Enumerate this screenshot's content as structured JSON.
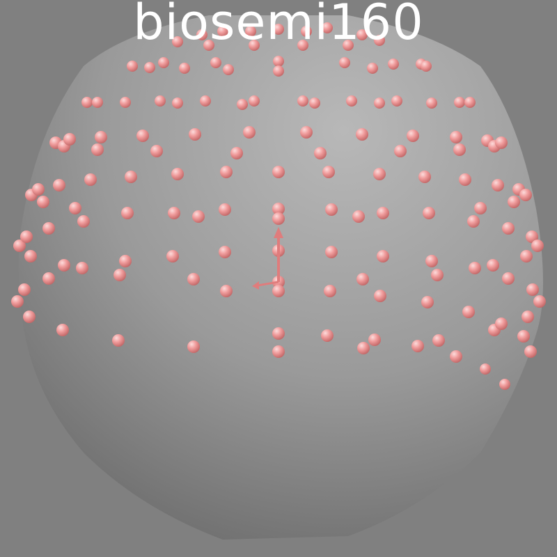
{
  "title": "biosemi160",
  "colors": {
    "background": "#808080",
    "head_light": "#b4b4b4",
    "head_dark": "#6e6e6e",
    "electrode": "#f0a0a0",
    "electrode_highlight": "#fbd9d9",
    "electrode_shadow": "#c46a6a",
    "axes": "#e07c7c"
  },
  "scene": {
    "head_shape": "sphere",
    "electrode_count": 160,
    "axes_glyph": true
  }
}
